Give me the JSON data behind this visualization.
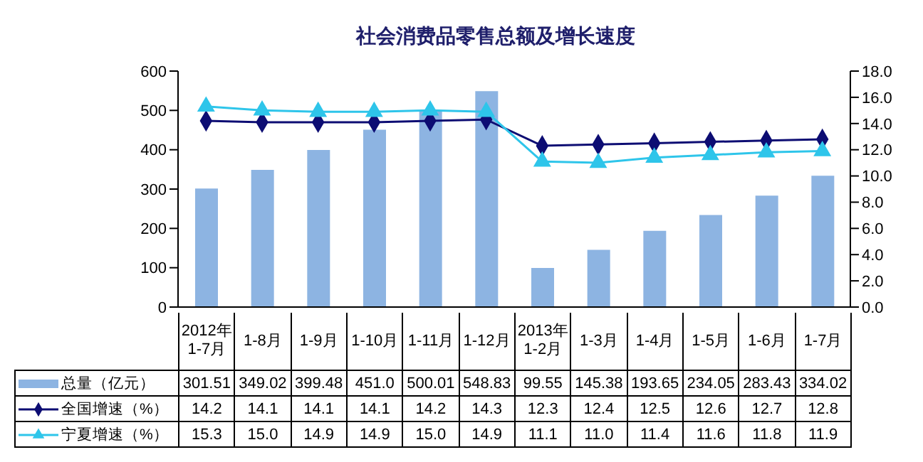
{
  "chart_data": {
    "type": "bar",
    "title": "社会消费品零售总额及增长速度",
    "categories": [
      "2012年1-7月",
      "1-8月",
      "1-9月",
      "1-10月",
      "1-11月",
      "1-12月",
      "2013年1-2月",
      "1-3月",
      "1-4月",
      "1-5月",
      "1-6月",
      "1-7月"
    ],
    "series": [
      {
        "name": "总量（亿元）",
        "color": "#8db4e2",
        "values": [
          301.51,
          349.02,
          399.48,
          451.0,
          500.01,
          548.83,
          99.55,
          145.38,
          193.65,
          234.05,
          283.43,
          334.02
        ],
        "value_labels": [
          "301.51",
          "349.02",
          "399.48",
          "451.0",
          "500.01",
          "548.83",
          "99.55",
          "145.38",
          "193.65",
          "234.05",
          "283.43",
          "334.02"
        ]
      },
      {
        "name": "全国增速（%）",
        "type": "line",
        "axis": "y2",
        "marker": "diamond",
        "color": "#0d0d73",
        "values": [
          14.2,
          14.1,
          14.1,
          14.1,
          14.2,
          14.3,
          12.3,
          12.4,
          12.5,
          12.6,
          12.7,
          12.8
        ],
        "value_labels": [
          "14.2",
          "14.1",
          "14.1",
          "14.1",
          "14.2",
          "14.3",
          "12.3",
          "12.4",
          "12.5",
          "12.6",
          "12.7",
          "12.8"
        ]
      },
      {
        "name": "宁夏增速（%）",
        "type": "line",
        "axis": "y2",
        "marker": "triangle",
        "color": "#2ec5ea",
        "values": [
          15.3,
          15.0,
          14.9,
          14.9,
          15.0,
          14.9,
          11.1,
          11.0,
          11.4,
          11.6,
          11.8,
          11.9
        ],
        "value_labels": [
          "15.3",
          "15.0",
          "14.9",
          "14.9",
          "15.0",
          "14.9",
          "11.1",
          "11.0",
          "11.4",
          "11.6",
          "11.8",
          "11.9"
        ]
      }
    ],
    "ylim": [
      0,
      600
    ],
    "yticks": [
      0,
      100,
      200,
      300,
      400,
      500,
      600
    ],
    "y2lim": [
      0,
      18
    ],
    "y2ticks": [
      {
        "value": 0,
        "label": "0.0"
      },
      {
        "value": 2,
        "label": "2.0"
      },
      {
        "value": 4,
        "label": "4.0"
      },
      {
        "value": 6,
        "label": "6.0"
      },
      {
        "value": 8,
        "label": "8.0"
      },
      {
        "value": 10,
        "label": "10.0"
      },
      {
        "value": 12,
        "label": "12.0"
      },
      {
        "value": 14,
        "label": "14.0"
      },
      {
        "value": 16,
        "label": "16.0"
      },
      {
        "value": 18,
        "label": "18.0"
      }
    ],
    "grid": false,
    "legend": "bottom"
  }
}
